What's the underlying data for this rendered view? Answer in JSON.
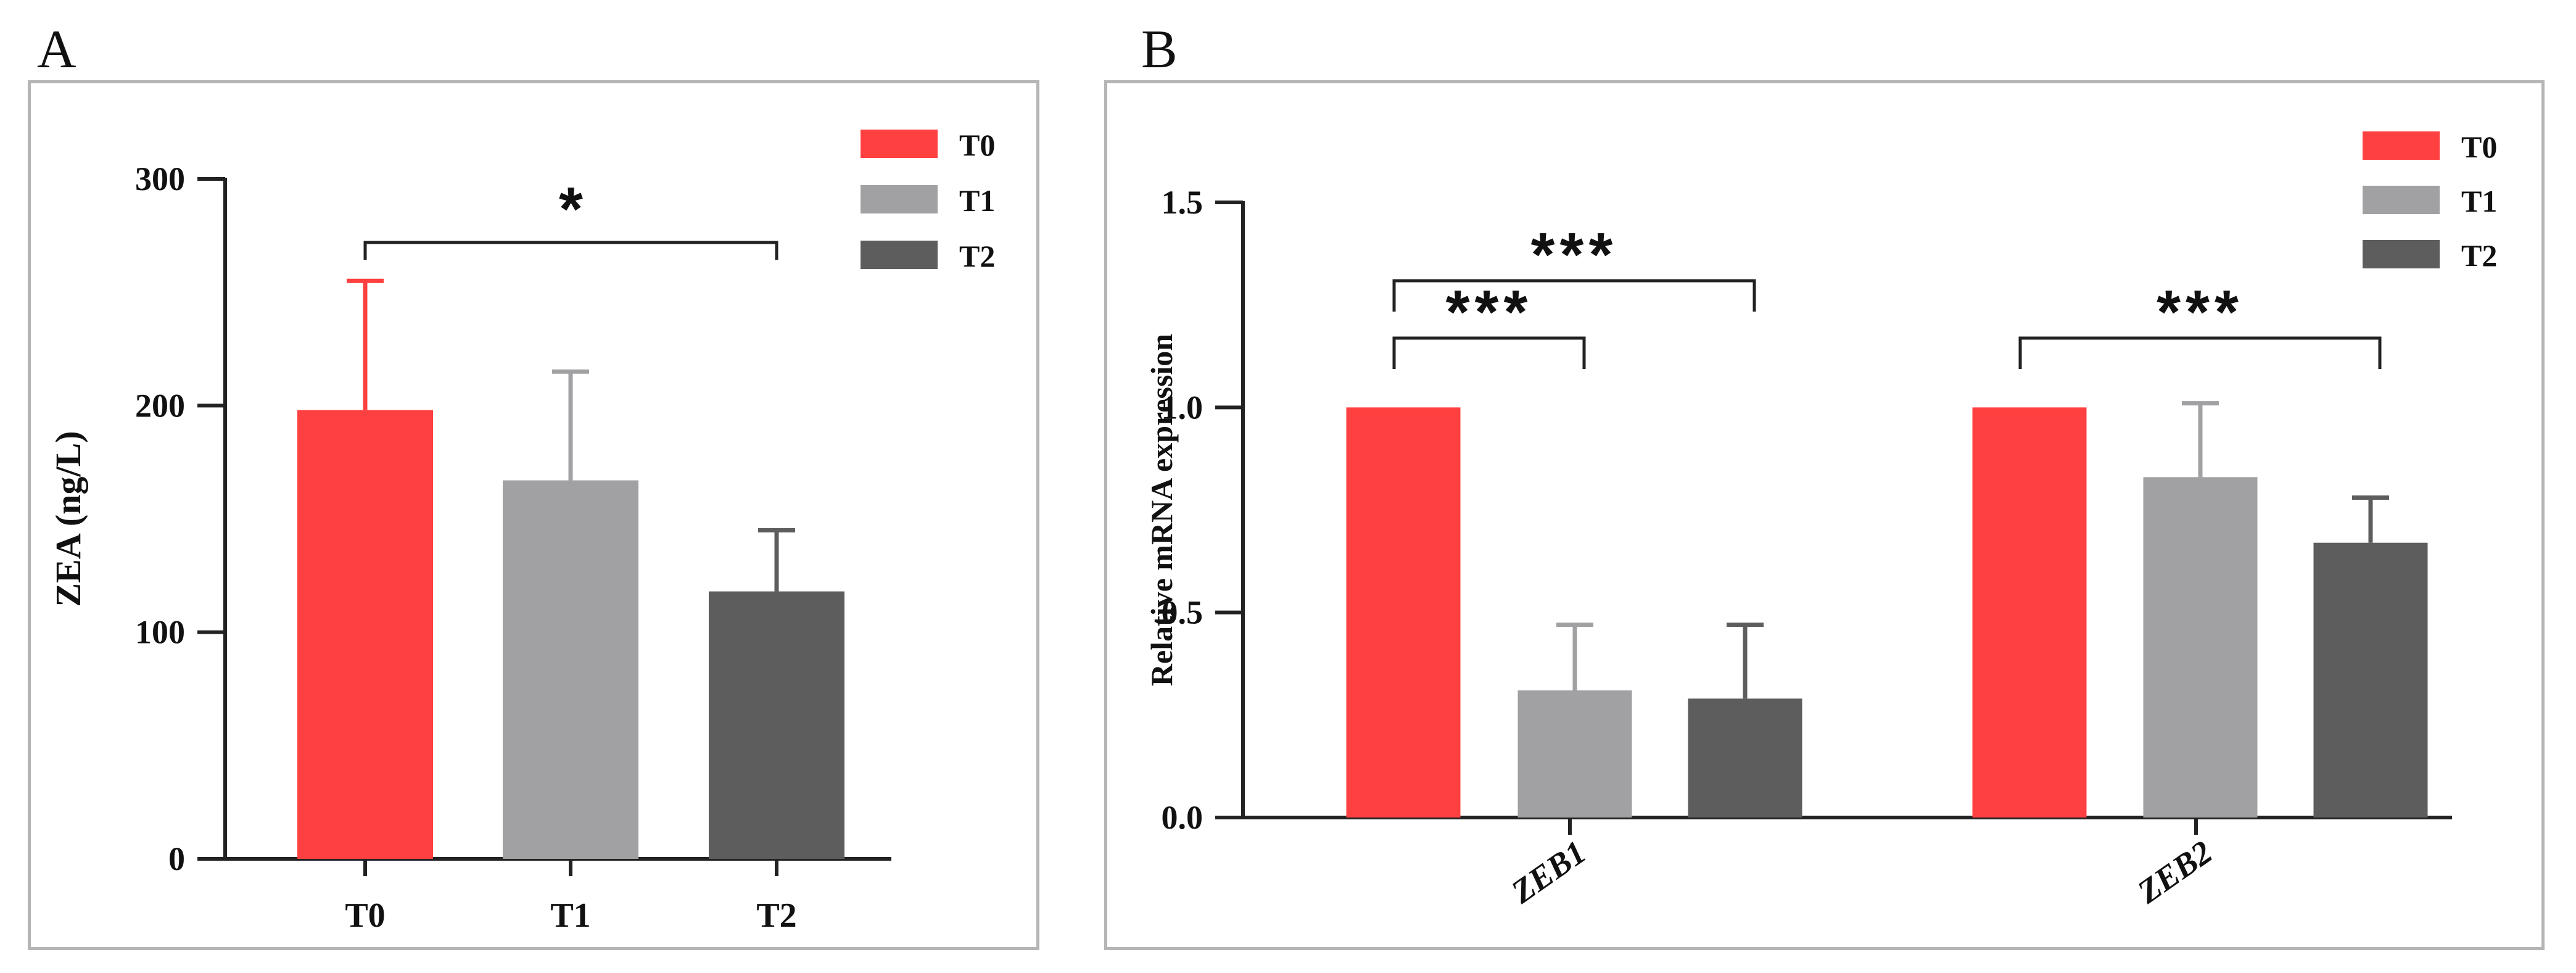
{
  "panels": {
    "a": {
      "letter": "A"
    },
    "b": {
      "letter": "B"
    }
  },
  "colors": {
    "T0": "#ff4040",
    "T1": "#a1a1a4",
    "T2": "#5d5d5d",
    "axis": "#222222",
    "frame": "#b5b5b5"
  },
  "chart_data": [
    {
      "type": "bar",
      "panel": "A",
      "title": "",
      "xlabel": "",
      "ylabel": "ZEA (ng/L)",
      "ylim": [
        0,
        300
      ],
      "yticks": [
        0,
        100,
        200,
        300
      ],
      "categories": [
        "T0",
        "T1",
        "T2"
      ],
      "values": [
        198,
        167,
        118
      ],
      "errors": [
        57,
        48,
        27
      ],
      "legend": {
        "placement": "top-right",
        "entries": [
          "T0",
          "T1",
          "T2"
        ]
      },
      "annotations": [
        {
          "from": "T0",
          "to": "T2",
          "label": "*"
        }
      ]
    },
    {
      "type": "bar",
      "panel": "B",
      "title": "",
      "xlabel": "",
      "ylabel": "Relative mRNA expression",
      "ylim": [
        0,
        1.5
      ],
      "yticks": [
        "0.0",
        "0.5",
        "1.0",
        "1.5"
      ],
      "categories": [
        "ZEB1",
        "ZEB2"
      ],
      "series": [
        {
          "name": "T0",
          "values": [
            1.0,
            1.0
          ],
          "errors": [
            0,
            0
          ]
        },
        {
          "name": "T1",
          "values": [
            0.31,
            0.83
          ],
          "errors": [
            0.16,
            0.18
          ]
        },
        {
          "name": "T2",
          "values": [
            0.29,
            0.67
          ],
          "errors": [
            0.18,
            0.11
          ]
        }
      ],
      "legend": {
        "placement": "top-right",
        "entries": [
          "T0",
          "T1",
          "T2"
        ]
      },
      "annotations": [
        {
          "category": "ZEB1",
          "from": "T0",
          "to": "T1",
          "label": "***"
        },
        {
          "category": "ZEB1",
          "from": "T0",
          "to": "T2",
          "label": "***"
        },
        {
          "category": "ZEB2",
          "from": "T0",
          "to": "T2",
          "label": "***"
        }
      ]
    }
  ]
}
